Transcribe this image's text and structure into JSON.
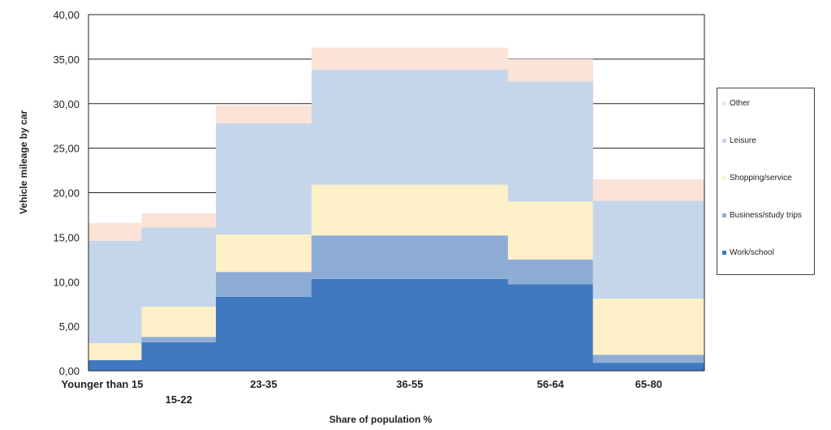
{
  "chart_data": {
    "type": "bar",
    "variant": "stacked-variable-width",
    "xlabel": "Share of population %",
    "ylabel": "Vehicle mileage by car",
    "ylim": [
      0,
      40
    ],
    "yticks": [
      "0,00",
      "5,00",
      "10,00",
      "15,00",
      "20,00",
      "25,00",
      "30,00",
      "35,00",
      "40,00"
    ],
    "grid": true,
    "legend_position": "right",
    "categories": [
      "Younger than 15",
      "15-22",
      "23-35",
      "36-55",
      "56-64",
      "65-80"
    ],
    "population_share": [
      5,
      7,
      9,
      18.5,
      8,
      10.5
    ],
    "series": [
      {
        "name": "Work/school",
        "color": "#4078bf",
        "values": [
          1.2,
          3.2,
          8.3,
          10.3,
          9.7,
          0.9
        ]
      },
      {
        "name": "Business/study trips",
        "color": "#8eadd6",
        "values": [
          0.0,
          0.6,
          2.8,
          4.9,
          2.8,
          0.9
        ]
      },
      {
        "name": "Shopping/service",
        "color": "#fdf0c9",
        "values": [
          1.9,
          3.4,
          4.2,
          5.7,
          6.5,
          6.3
        ]
      },
      {
        "name": "Leisure",
        "color": "#c6d6ea",
        "values": [
          11.5,
          8.9,
          12.5,
          12.9,
          13.5,
          11.0
        ]
      },
      {
        "name": "Other",
        "color": "#fbe3d7",
        "values": [
          2.0,
          1.6,
          2.0,
          2.5,
          2.5,
          2.4
        ]
      }
    ]
  }
}
